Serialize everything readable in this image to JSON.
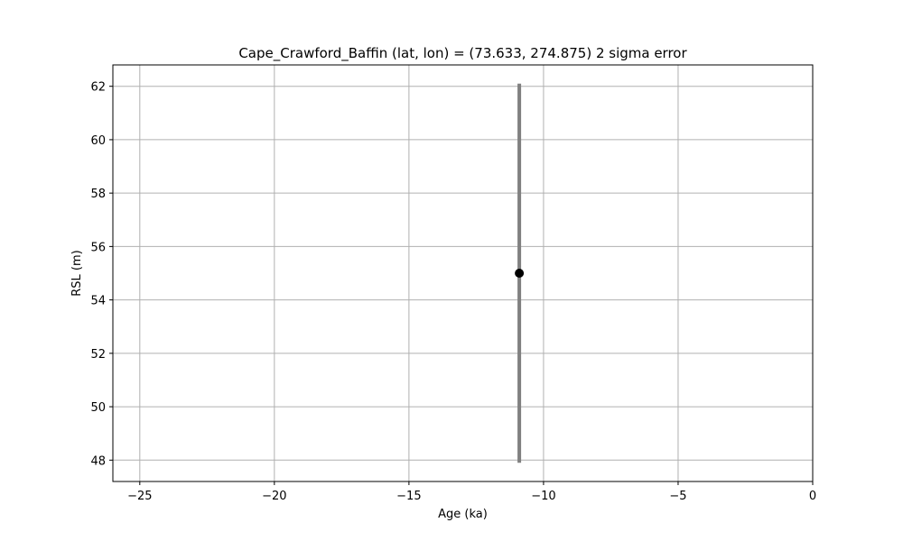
{
  "chart_data": {
    "type": "scatter",
    "title": "Cape_Crawford_Baffin (lat, lon) = (73.633, 274.875)  2 sigma error",
    "xlabel": "Age (ka)",
    "ylabel": "RSL (m)",
    "xlim": [
      -26,
      0
    ],
    "ylim": [
      47.2,
      62.8
    ],
    "x_ticks": [
      -25,
      -20,
      -15,
      -10,
      -5,
      0
    ],
    "x_tick_labels": [
      "−25",
      "−20",
      "−15",
      "−10",
      "−5",
      "0"
    ],
    "y_ticks": [
      48,
      50,
      52,
      54,
      56,
      58,
      60,
      62
    ],
    "y_tick_labels": [
      "48",
      "50",
      "52",
      "54",
      "56",
      "58",
      "60",
      "62"
    ],
    "grid": true,
    "points": [
      {
        "x": -10.9,
        "y": 55.0,
        "y_low": 47.9,
        "y_high": 62.1
      }
    ],
    "colors": {
      "point": "#000000",
      "errorbar": "#808080",
      "grid": "#b0b0b0",
      "axes": "#000000"
    }
  }
}
